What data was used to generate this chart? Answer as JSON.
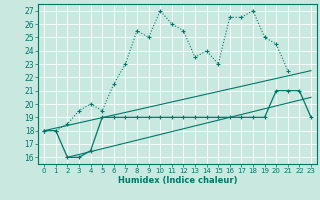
{
  "xlabel": "Humidex (Indice chaleur)",
  "bg_color": "#c8e8e0",
  "grid_color": "#b0d8d0",
  "line_color": "#007868",
  "xlim": [
    -0.5,
    23.5
  ],
  "ylim": [
    15.5,
    27.5
  ],
  "yticks": [
    16,
    17,
    18,
    19,
    20,
    21,
    22,
    23,
    24,
    25,
    26,
    27
  ],
  "xticks": [
    0,
    1,
    2,
    3,
    4,
    5,
    6,
    7,
    8,
    9,
    10,
    11,
    12,
    13,
    14,
    15,
    16,
    17,
    18,
    19,
    20,
    21,
    22,
    23
  ],
  "series1_x": [
    0,
    1,
    2,
    3,
    4,
    5,
    6,
    7,
    8,
    9,
    10,
    11,
    12,
    13,
    14,
    15,
    16,
    17,
    18,
    19,
    20,
    21
  ],
  "series1_y": [
    18.0,
    18.0,
    18.5,
    19.5,
    20.0,
    19.5,
    21.5,
    23.0,
    25.5,
    25.0,
    27.0,
    26.0,
    25.5,
    23.5,
    24.0,
    23.0,
    26.5,
    26.5,
    27.0,
    25.0,
    24.5,
    22.5
  ],
  "series2_x": [
    0,
    1,
    2,
    3,
    4,
    5,
    6,
    7,
    8,
    9,
    10,
    11,
    12,
    13,
    14,
    15,
    16,
    17,
    18,
    19,
    20,
    21,
    22,
    23
  ],
  "series2_y": [
    18.0,
    18.0,
    16.0,
    16.0,
    16.5,
    19.0,
    19.0,
    19.0,
    19.0,
    19.0,
    19.0,
    19.0,
    19.0,
    19.0,
    19.0,
    19.0,
    19.0,
    19.0,
    19.0,
    19.0,
    21.0,
    21.0,
    21.0,
    19.0
  ],
  "series3_x": [
    0,
    23
  ],
  "series3_y": [
    18.0,
    22.5
  ],
  "series4_x": [
    2,
    23
  ],
  "series4_y": [
    16.0,
    20.5
  ]
}
